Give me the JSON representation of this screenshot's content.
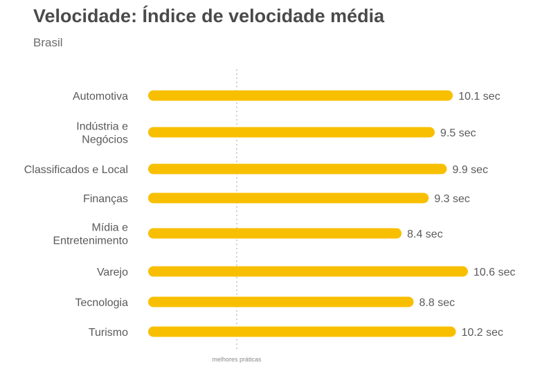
{
  "chart_data": {
    "type": "bar",
    "orientation": "horizontal",
    "title": "Velocidade: Índice de velocidade média",
    "subtitle": "Brasil",
    "categories": [
      [
        "Automotiva"
      ],
      [
        "Indústria e",
        "Negócios"
      ],
      [
        "Classificados e Local"
      ],
      [
        "Finanças"
      ],
      [
        "Mídia e",
        "Entretenimento"
      ],
      [
        "Varejo"
      ],
      [
        "Tecnologia"
      ],
      [
        "Turismo"
      ]
    ],
    "values": [
      10.1,
      9.5,
      9.9,
      9.3,
      8.4,
      10.6,
      8.8,
      10.2
    ],
    "value_labels": [
      "10.1 sec",
      "9.5 sec",
      "9.9 sec",
      "9.3 sec",
      "8.4 sec",
      "10.6 sec",
      "8.8 sec",
      "10.2 sec"
    ],
    "reference_line": {
      "value": 3,
      "label": "melhores práticas"
    },
    "xlim": [
      0,
      10.6
    ],
    "bar_color": "#f8bf00",
    "reference_color": "#b0b0b0",
    "grid": false,
    "legend": "none"
  }
}
